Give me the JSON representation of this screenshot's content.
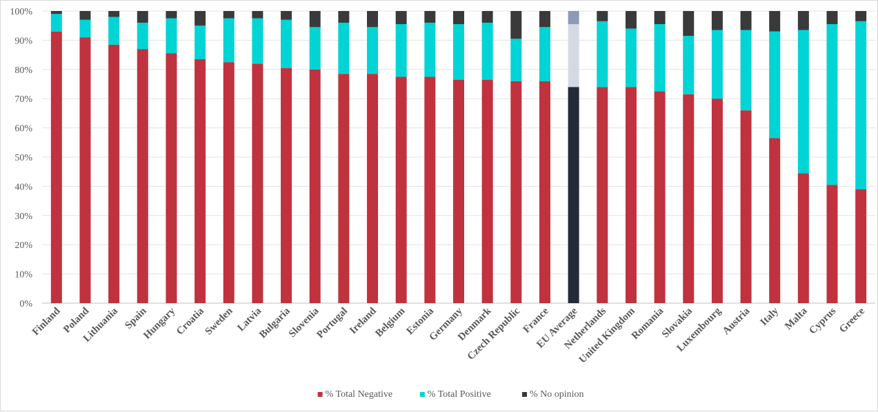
{
  "chart_data": {
    "type": "bar",
    "stacked": true,
    "categories": [
      "Finland",
      "Poland",
      "Lithuania",
      "Spain",
      "Hungary",
      "Croatia",
      "Sweden",
      "Latvia",
      "Bulgaria",
      "Slovenia",
      "Portugal",
      "Ireland",
      "Belgium",
      "Estonia",
      "Germany",
      "Denmark",
      "Czech Republic",
      "France",
      "EU Average",
      "Netherlands",
      "United Kingdom",
      "Romania",
      "Slovakia",
      "Luxembourg",
      "Austria",
      "Italy",
      "Malta",
      "Cyprus",
      "Greece"
    ],
    "series": [
      {
        "name": "% Total Negative",
        "color": "#c0323e",
        "values": [
          93,
          91,
          88.5,
          87,
          85.5,
          83.5,
          82.5,
          82,
          80.5,
          80,
          78.5,
          78.5,
          77.5,
          77.5,
          76.5,
          76.5,
          76,
          76,
          74,
          74,
          74,
          72.5,
          71.5,
          70,
          66,
          56.5,
          44.5,
          40.5,
          39
        ]
      },
      {
        "name": "% Total Positive",
        "color": "#00d4d4",
        "values": [
          6,
          6,
          9.5,
          9,
          12,
          11.5,
          15,
          15.5,
          16.5,
          14.5,
          17.5,
          16,
          18,
          18.5,
          19,
          19.5,
          14.5,
          18.5,
          21.5,
          22.5,
          20,
          23,
          20,
          23.5,
          27.5,
          36.5,
          49,
          55,
          57.5
        ]
      },
      {
        "name": "% No opinion",
        "color": "#3a3a3a",
        "values": [
          1,
          3,
          2,
          4,
          2.5,
          5,
          2.5,
          2.5,
          3,
          5.5,
          4,
          5.5,
          4.5,
          4,
          4.5,
          4,
          9.5,
          5.5,
          4.5,
          3.5,
          6,
          4.5,
          8.5,
          6.5,
          6.5,
          7,
          6.5,
          4.5,
          3.5
        ]
      }
    ],
    "highlight": {
      "category": "EU Average",
      "colors": [
        "#232a38",
        "#d5d9e3",
        "#8c9ab5"
      ]
    },
    "yticks": [
      "0%",
      "10%",
      "20%",
      "30%",
      "40%",
      "50%",
      "60%",
      "70%",
      "80%",
      "90%",
      "100%"
    ],
    "ylim": [
      0,
      100
    ],
    "grid": true,
    "legend_position": "bottom"
  }
}
